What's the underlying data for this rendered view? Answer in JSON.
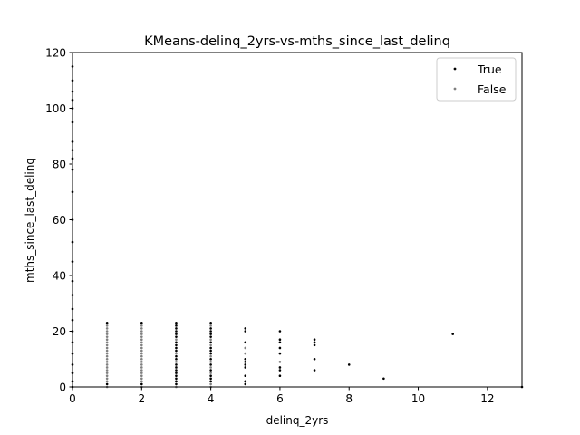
{
  "chart_data": {
    "type": "scatter",
    "title": "KMeans-delinq_2yrs-vs-mths_since_last_delinq",
    "xlabel": "delinq_2yrs",
    "ylabel": "mths_since_last_delinq",
    "xlim": [
      0,
      13
    ],
    "ylim": [
      0,
      120
    ],
    "xticks": [
      "0",
      "2",
      "4",
      "6",
      "8",
      "10",
      "12"
    ],
    "yticks": [
      "0",
      "20",
      "40",
      "60",
      "80",
      "100",
      "120"
    ],
    "grid": false,
    "legend_position": "top-right",
    "series": [
      {
        "name": "True",
        "color": "#000000",
        "points": [
          [
            0,
            0
          ],
          [
            0,
            2
          ],
          [
            0,
            5
          ],
          [
            0,
            8
          ],
          [
            0,
            12
          ],
          [
            0,
            16
          ],
          [
            0,
            20
          ],
          [
            0,
            24
          ],
          [
            0,
            28
          ],
          [
            0,
            33
          ],
          [
            0,
            38
          ],
          [
            0,
            45
          ],
          [
            0,
            52
          ],
          [
            0,
            60
          ],
          [
            0,
            70
          ],
          [
            0,
            78
          ],
          [
            0,
            82
          ],
          [
            0,
            85
          ],
          [
            0,
            88
          ],
          [
            0,
            95
          ],
          [
            0,
            100
          ],
          [
            0,
            103
          ],
          [
            0,
            106
          ],
          [
            0,
            110
          ],
          [
            0,
            115
          ],
          [
            1,
            1
          ],
          [
            1,
            23
          ],
          [
            2,
            1
          ],
          [
            2,
            23
          ],
          [
            3,
            1
          ],
          [
            3,
            2
          ],
          [
            3,
            3
          ],
          [
            3,
            4
          ],
          [
            3,
            5
          ],
          [
            3,
            6
          ],
          [
            3,
            7
          ],
          [
            3,
            8
          ],
          [
            3,
            10
          ],
          [
            3,
            11
          ],
          [
            3,
            13
          ],
          [
            3,
            14
          ],
          [
            3,
            15
          ],
          [
            3,
            16
          ],
          [
            3,
            18
          ],
          [
            3,
            19
          ],
          [
            3,
            20
          ],
          [
            3,
            21
          ],
          [
            3,
            22
          ],
          [
            3,
            23
          ],
          [
            4,
            2
          ],
          [
            4,
            3
          ],
          [
            4,
            4
          ],
          [
            4,
            6
          ],
          [
            4,
            8
          ],
          [
            4,
            10
          ],
          [
            4,
            12
          ],
          [
            4,
            13
          ],
          [
            4,
            14
          ],
          [
            4,
            16
          ],
          [
            4,
            18
          ],
          [
            4,
            19
          ],
          [
            4,
            20
          ],
          [
            4,
            21
          ],
          [
            4,
            23
          ],
          [
            5,
            1
          ],
          [
            5,
            2
          ],
          [
            5,
            4
          ],
          [
            5,
            7
          ],
          [
            5,
            8
          ],
          [
            5,
            9
          ],
          [
            5,
            10
          ],
          [
            5,
            16
          ],
          [
            5,
            20
          ],
          [
            5,
            21
          ],
          [
            6,
            4
          ],
          [
            6,
            6
          ],
          [
            6,
            7
          ],
          [
            6,
            12
          ],
          [
            6,
            14
          ],
          [
            6,
            16
          ],
          [
            6,
            17
          ],
          [
            6,
            20
          ],
          [
            7,
            6
          ],
          [
            7,
            10
          ],
          [
            7,
            15
          ],
          [
            7,
            16
          ],
          [
            7,
            17
          ],
          [
            8,
            8
          ],
          [
            9,
            3
          ],
          [
            11,
            19
          ],
          [
            13,
            0
          ]
        ]
      },
      {
        "name": "False",
        "color": "#808080",
        "points": [
          [
            1,
            0
          ],
          [
            1,
            2
          ],
          [
            1,
            3
          ],
          [
            1,
            4
          ],
          [
            1,
            5
          ],
          [
            1,
            6
          ],
          [
            1,
            7
          ],
          [
            1,
            8
          ],
          [
            1,
            9
          ],
          [
            1,
            10
          ],
          [
            1,
            11
          ],
          [
            1,
            12
          ],
          [
            1,
            13
          ],
          [
            1,
            14
          ],
          [
            1,
            15
          ],
          [
            1,
            16
          ],
          [
            1,
            17
          ],
          [
            1,
            18
          ],
          [
            1,
            19
          ],
          [
            1,
            20
          ],
          [
            1,
            21
          ],
          [
            1,
            22
          ],
          [
            2,
            0
          ],
          [
            2,
            2
          ],
          [
            2,
            3
          ],
          [
            2,
            4
          ],
          [
            2,
            5
          ],
          [
            2,
            6
          ],
          [
            2,
            7
          ],
          [
            2,
            8
          ],
          [
            2,
            9
          ],
          [
            2,
            10
          ],
          [
            2,
            11
          ],
          [
            2,
            12
          ],
          [
            2,
            13
          ],
          [
            2,
            14
          ],
          [
            2,
            15
          ],
          [
            2,
            16
          ],
          [
            2,
            17
          ],
          [
            2,
            18
          ],
          [
            2,
            19
          ],
          [
            2,
            20
          ],
          [
            2,
            21
          ],
          [
            2,
            22
          ],
          [
            3,
            0
          ],
          [
            3,
            9
          ],
          [
            3,
            12
          ],
          [
            3,
            17
          ],
          [
            4,
            0
          ],
          [
            4,
            1
          ],
          [
            4,
            5
          ],
          [
            4,
            7
          ],
          [
            4,
            9
          ],
          [
            4,
            11
          ],
          [
            4,
            15
          ],
          [
            4,
            17
          ],
          [
            4,
            22
          ],
          [
            5,
            12
          ],
          [
            5,
            14
          ],
          [
            6,
            9
          ]
        ]
      }
    ]
  }
}
